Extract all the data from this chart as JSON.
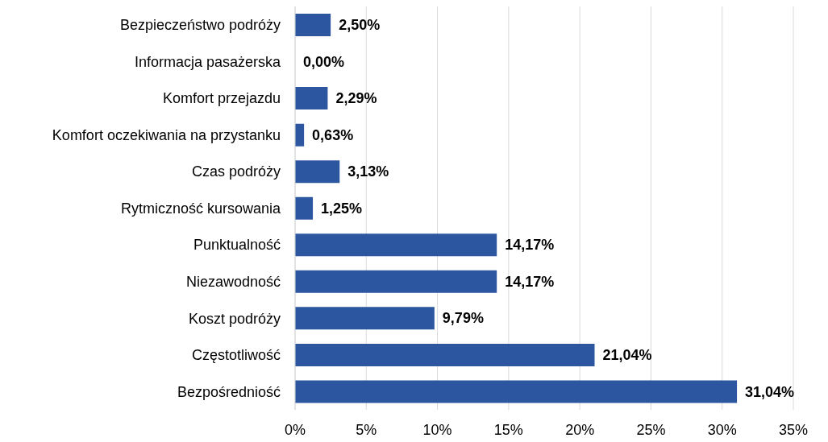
{
  "chart_data": {
    "type": "bar",
    "orientation": "horizontal",
    "categories": [
      "Bezpieczeństwo podróży",
      "Informacja pasażerska",
      "Komfort przejazdu",
      "Komfort oczekiwania na przystanku",
      "Czas podróży",
      "Rytmiczność kursowania",
      "Punktualność",
      "Niezawodność",
      "Koszt podróży",
      "Częstotliwość",
      "Bezpośredniość"
    ],
    "values": [
      2.5,
      0,
      2.29,
      0.63,
      3.13,
      1.25,
      14.17,
      14.17,
      9.79,
      21.04,
      31.04
    ],
    "value_labels": [
      "2,50%",
      "0,00%",
      "2,29%",
      "0,63%",
      "3,13%",
      "1,25%",
      "14,17%",
      "14,17%",
      "9,79%",
      "21,04%",
      "31,04%"
    ],
    "color": "#2c56a0",
    "xlim": [
      0,
      35
    ],
    "xticks": [
      {
        "value": 0,
        "label": "0%"
      },
      {
        "value": 5,
        "label": "5%"
      },
      {
        "value": 10,
        "label": "10%"
      },
      {
        "value": 15,
        "label": "15%"
      },
      {
        "value": 20,
        "label": "20%"
      },
      {
        "value": 25,
        "label": "25%"
      },
      {
        "value": 30,
        "label": "30%"
      },
      {
        "value": 35,
        "label": "35%"
      }
    ],
    "grid": "x"
  }
}
